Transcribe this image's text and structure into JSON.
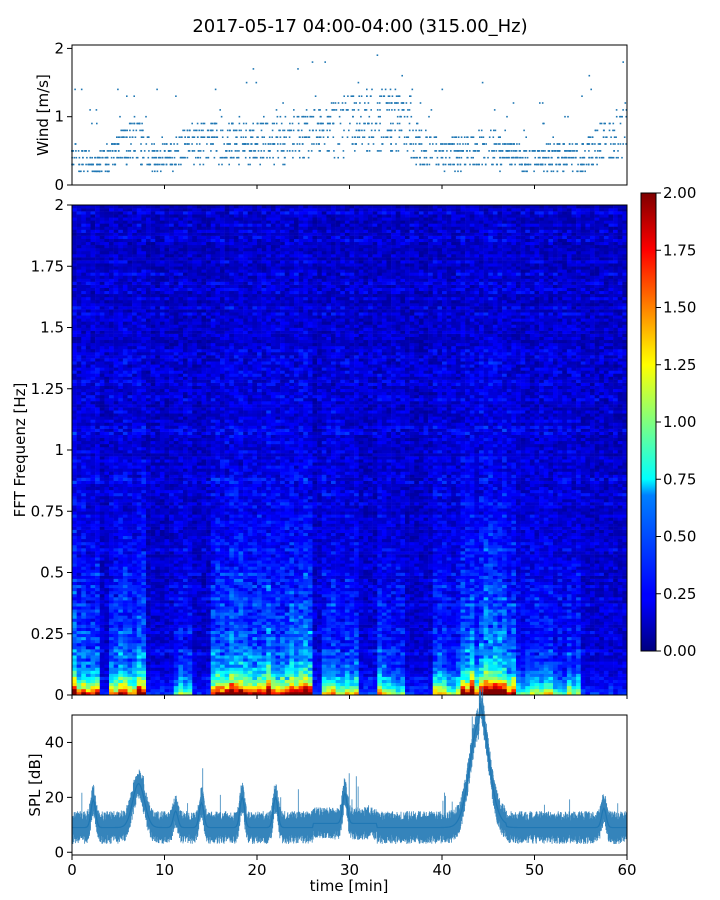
{
  "title": "2017-05-17 04:00-04:00 (315.00_Hz)",
  "colors": {
    "series": "#1f77b4",
    "axis": "#000000"
  },
  "chart_data": [
    {
      "name": "wind",
      "type": "scatter",
      "ylabel": "Wind [m/s]",
      "xlim": [
        0,
        60
      ],
      "ylim": [
        0,
        2.05
      ],
      "yticks": [
        "0",
        "1",
        "2"
      ],
      "ytick_values": [
        0,
        1,
        2
      ],
      "x_ticks_labeled": false,
      "profile": [
        {
          "x": 0,
          "y": 0.45
        },
        {
          "x": 3,
          "y": 0.3
        },
        {
          "x": 5,
          "y": 0.5
        },
        {
          "x": 7,
          "y": 0.7
        },
        {
          "x": 9,
          "y": 0.35
        },
        {
          "x": 11,
          "y": 0.45
        },
        {
          "x": 13,
          "y": 0.6
        },
        {
          "x": 16,
          "y": 0.65
        },
        {
          "x": 19,
          "y": 0.6
        },
        {
          "x": 22,
          "y": 0.65
        },
        {
          "x": 25,
          "y": 0.7
        },
        {
          "x": 28,
          "y": 0.8
        },
        {
          "x": 31,
          "y": 0.9
        },
        {
          "x": 34,
          "y": 0.95
        },
        {
          "x": 36,
          "y": 0.85
        },
        {
          "x": 38,
          "y": 0.5
        },
        {
          "x": 41,
          "y": 0.45
        },
        {
          "x": 44,
          "y": 0.55
        },
        {
          "x": 46,
          "y": 0.5
        },
        {
          "x": 49,
          "y": 0.35
        },
        {
          "x": 52,
          "y": 0.4
        },
        {
          "x": 55,
          "y": 0.4
        },
        {
          "x": 57,
          "y": 0.6
        },
        {
          "x": 60,
          "y": 0.8
        }
      ],
      "y_max_observed": 2.0,
      "y_min_observed": 0.1
    },
    {
      "name": "spectrogram",
      "type": "heatmap",
      "ylabel": "FFT Frequenz [Hz]",
      "xlim": [
        0,
        60
      ],
      "ylim": [
        0,
        2
      ],
      "yticks": [
        "0",
        "0.25",
        "0.5",
        "0.75",
        "1",
        "1.25",
        "1.5",
        "1.75",
        "2"
      ],
      "ytick_values": [
        0,
        0.25,
        0.5,
        0.75,
        1,
        1.25,
        1.5,
        1.75,
        2
      ],
      "colormap": "jet",
      "colorbar": {
        "range": [
          0,
          2
        ],
        "ticks": [
          "0.00",
          "0.25",
          "0.50",
          "0.75",
          "1.00",
          "1.25",
          "1.50",
          "1.75",
          "2.00"
        ],
        "tick_values": [
          0,
          0.25,
          0.5,
          0.75,
          1,
          1.25,
          1.5,
          1.75,
          2
        ]
      },
      "energy_events": [
        {
          "x_start": 0,
          "x_end": 3,
          "intensity": 0.9
        },
        {
          "x_start": 4,
          "x_end": 8,
          "intensity": 0.8
        },
        {
          "x_start": 11,
          "x_end": 13,
          "intensity": 0.45
        },
        {
          "x_start": 15,
          "x_end": 17,
          "intensity": 0.8
        },
        {
          "x_start": 17,
          "x_end": 26,
          "intensity": 1.0
        },
        {
          "x_start": 27,
          "x_end": 31,
          "intensity": 0.6
        },
        {
          "x_start": 33,
          "x_end": 36,
          "intensity": 0.55
        },
        {
          "x_start": 39,
          "x_end": 42,
          "intensity": 0.55
        },
        {
          "x_start": 42,
          "x_end": 48,
          "intensity": 1.0
        },
        {
          "x_start": 48,
          "x_end": 55,
          "intensity": 0.45
        }
      ]
    },
    {
      "name": "spl",
      "type": "line",
      "ylabel": "SPL [dB]",
      "xlabel": "time [min]",
      "xlim": [
        0,
        60
      ],
      "ylim": [
        -1,
        50
      ],
      "xticks": [
        "0",
        "10",
        "20",
        "30",
        "40",
        "50",
        "60"
      ],
      "xtick_values": [
        0,
        10,
        20,
        30,
        40,
        50,
        60
      ],
      "yticks": [
        "0",
        "20",
        "40"
      ],
      "ytick_values": [
        0,
        20,
        40
      ],
      "baseline": 9,
      "peaks": [
        {
          "x": 2.3,
          "y": 19
        },
        {
          "x": 7.2,
          "y": 25
        },
        {
          "x": 11.2,
          "y": 15
        },
        {
          "x": 14.0,
          "y": 18
        },
        {
          "x": 18.4,
          "y": 20
        },
        {
          "x": 22.0,
          "y": 20
        },
        {
          "x": 29.5,
          "y": 20
        },
        {
          "x": 44.0,
          "y": 47
        },
        {
          "x": 57.5,
          "y": 16
        }
      ]
    }
  ]
}
